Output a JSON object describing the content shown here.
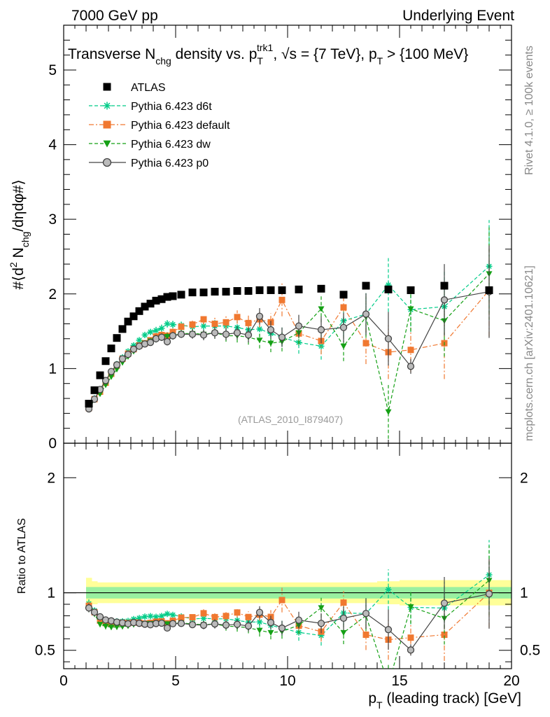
{
  "header": {
    "left": "7000 GeV pp",
    "right": "Underlying Event"
  },
  "side_labels": {
    "rivet": "Rivet 4.1.0, ≥ 100k events",
    "mcplots": "mcplots.cern.ch [arXiv:2401.10621]"
  },
  "chart_data": [
    {
      "type": "scatter",
      "panel": "main",
      "title": "Transverse N_chg density vs. p_T^trk1, √s = {7 TeV}, p_T > {100 MeV}",
      "ylabel": "#⟨d² N_chg/dηdφ#⟩",
      "xlim": [
        0,
        20
      ],
      "ylim": [
        0,
        5.6
      ],
      "xticks": [
        0,
        5,
        10,
        15,
        20
      ],
      "yticks": [
        0,
        1,
        2,
        3,
        4,
        5
      ],
      "analysis_label": "(ATLAS_2010_I879407)",
      "legend": [
        {
          "name": "ATLAS",
          "color": "#000000",
          "marker": "square",
          "style": "none"
        },
        {
          "name": "Pythia 6.423 d6t",
          "color": "#00cc88",
          "marker": "star",
          "style": "dashed"
        },
        {
          "name": "Pythia 6.423 default",
          "color": "#f07830",
          "marker": "square",
          "style": "dashdot"
        },
        {
          "name": "Pythia 6.423 dw",
          "color": "#15a015",
          "marker": "triangle-down",
          "style": "dashed"
        },
        {
          "name": "Pythia 6.423 p0",
          "color": "#444444",
          "marker": "circle",
          "style": "solid"
        }
      ],
      "series": [
        {
          "name": "ATLAS",
          "x": [
            1.125,
            1.375,
            1.625,
            1.875,
            2.125,
            2.375,
            2.625,
            2.875,
            3.125,
            3.375,
            3.625,
            3.875,
            4.125,
            4.375,
            4.625,
            4.875,
            5.25,
            5.75,
            6.25,
            6.75,
            7.25,
            7.75,
            8.25,
            8.75,
            9.25,
            9.75,
            10.5,
            11.5,
            12.5,
            13.5,
            14.5,
            15.5,
            17.0,
            19.0
          ],
          "y": [
            0.53,
            0.71,
            0.91,
            1.1,
            1.27,
            1.41,
            1.53,
            1.63,
            1.7,
            1.77,
            1.83,
            1.87,
            1.91,
            1.93,
            1.96,
            1.97,
            1.99,
            2.02,
            2.02,
            2.03,
            2.03,
            2.04,
            2.04,
            2.05,
            2.05,
            2.05,
            2.06,
            2.07,
            1.99,
            2.11,
            2.06,
            2.05,
            2.11,
            2.05
          ],
          "err": [
            0,
            0,
            0,
            0,
            0,
            0,
            0,
            0,
            0,
            0,
            0,
            0,
            0,
            0,
            0,
            0,
            0,
            0,
            0,
            0,
            0,
            0,
            0,
            0,
            0,
            0,
            0,
            0,
            0,
            0,
            0,
            0,
            0,
            0
          ]
        },
        {
          "name": "Pythia 6.423 d6t",
          "x": [
            1.125,
            1.375,
            1.625,
            1.875,
            2.125,
            2.375,
            2.625,
            2.875,
            3.125,
            3.375,
            3.625,
            3.875,
            4.125,
            4.375,
            4.625,
            4.875,
            5.25,
            5.75,
            6.25,
            6.75,
            7.25,
            7.75,
            8.25,
            8.75,
            9.25,
            9.75,
            10.5,
            11.5,
            12.5,
            13.5,
            14.5,
            15.5,
            17.0,
            19.0
          ],
          "y": [
            0.48,
            0.6,
            0.7,
            0.83,
            0.95,
            1.06,
            1.15,
            1.23,
            1.31,
            1.38,
            1.45,
            1.49,
            1.51,
            1.54,
            1.6,
            1.59,
            1.58,
            1.56,
            1.57,
            1.57,
            1.57,
            1.55,
            1.52,
            1.53,
            1.47,
            1.42,
            1.35,
            1.3,
            1.64,
            1.73,
            2.12,
            1.79,
            1.83,
            2.37
          ],
          "err": [
            0.02,
            0.02,
            0.02,
            0.03,
            0.03,
            0.03,
            0.03,
            0.03,
            0.03,
            0.04,
            0.04,
            0.04,
            0.05,
            0.05,
            0.05,
            0.05,
            0.05,
            0.06,
            0.07,
            0.08,
            0.08,
            0.09,
            0.1,
            0.11,
            0.12,
            0.13,
            0.15,
            0.18,
            0.2,
            0.28,
            0.36,
            0.3,
            0.48,
            0.62
          ]
        },
        {
          "name": "Pythia 6.423 default",
          "x": [
            1.125,
            1.375,
            1.625,
            1.875,
            2.125,
            2.375,
            2.625,
            2.875,
            3.125,
            3.375,
            3.625,
            3.875,
            4.125,
            4.375,
            4.625,
            4.875,
            5.25,
            5.75,
            6.25,
            6.75,
            7.25,
            7.75,
            8.25,
            8.75,
            9.25,
            9.75,
            10.5,
            11.5,
            12.5,
            13.5,
            14.5,
            15.5,
            17.0,
            19.0
          ],
          "y": [
            0.47,
            0.59,
            0.69,
            0.81,
            0.93,
            1.04,
            1.13,
            1.2,
            1.26,
            1.31,
            1.34,
            1.38,
            1.43,
            1.45,
            1.44,
            1.49,
            1.56,
            1.59,
            1.66,
            1.6,
            1.62,
            1.69,
            1.61,
            1.66,
            1.62,
            1.92,
            1.47,
            1.37,
            1.82,
            1.34,
            1.22,
            1.25,
            1.34,
            2.05
          ],
          "err": [
            0.02,
            0.02,
            0.02,
            0.03,
            0.03,
            0.03,
            0.03,
            0.03,
            0.03,
            0.04,
            0.04,
            0.04,
            0.05,
            0.05,
            0.05,
            0.05,
            0.05,
            0.06,
            0.07,
            0.08,
            0.08,
            0.09,
            0.1,
            0.11,
            0.12,
            0.22,
            0.15,
            0.18,
            0.2,
            0.28,
            0.36,
            0.3,
            0.48,
            0.62
          ]
        },
        {
          "name": "Pythia 6.423 dw",
          "x": [
            1.125,
            1.375,
            1.625,
            1.875,
            2.125,
            2.375,
            2.625,
            2.875,
            3.125,
            3.375,
            3.625,
            3.875,
            4.125,
            4.375,
            4.625,
            4.875,
            5.25,
            5.75,
            6.25,
            6.75,
            7.25,
            7.75,
            8.25,
            8.75,
            9.25,
            9.75,
            10.5,
            11.5,
            12.5,
            13.5,
            14.5,
            15.5,
            17.0,
            19.0
          ],
          "y": [
            0.46,
            0.58,
            0.66,
            0.78,
            0.89,
            0.99,
            1.08,
            1.16,
            1.23,
            1.29,
            1.34,
            1.37,
            1.4,
            1.42,
            1.43,
            1.44,
            1.47,
            1.47,
            1.46,
            1.48,
            1.44,
            1.44,
            1.42,
            1.38,
            1.34,
            1.36,
            1.48,
            1.8,
            1.3,
            1.69,
            0.42,
            1.8,
            1.64,
            2.27
          ],
          "err": [
            0.02,
            0.02,
            0.02,
            0.03,
            0.03,
            0.03,
            0.03,
            0.03,
            0.03,
            0.04,
            0.04,
            0.04,
            0.05,
            0.05,
            0.05,
            0.05,
            0.05,
            0.06,
            0.07,
            0.08,
            0.08,
            0.09,
            0.1,
            0.11,
            0.12,
            0.13,
            0.15,
            0.18,
            0.2,
            0.28,
            0.36,
            0.3,
            0.48,
            0.62
          ]
        },
        {
          "name": "Pythia 6.423 p0",
          "x": [
            1.125,
            1.375,
            1.625,
            1.875,
            2.125,
            2.375,
            2.625,
            2.875,
            3.125,
            3.375,
            3.625,
            3.875,
            4.125,
            4.375,
            4.625,
            4.875,
            5.25,
            5.75,
            6.25,
            6.75,
            7.25,
            7.75,
            8.25,
            8.75,
            9.25,
            9.75,
            10.5,
            11.5,
            12.5,
            13.5,
            14.5,
            15.5,
            17.0,
            19.0
          ],
          "y": [
            0.46,
            0.59,
            0.72,
            0.84,
            0.96,
            1.05,
            1.13,
            1.19,
            1.26,
            1.3,
            1.33,
            1.35,
            1.4,
            1.42,
            1.36,
            1.44,
            1.46,
            1.46,
            1.45,
            1.48,
            1.46,
            1.48,
            1.45,
            1.7,
            1.52,
            1.42,
            1.57,
            1.52,
            1.55,
            1.73,
            1.4,
            1.03,
            1.92,
            2.03
          ],
          "err": [
            0.02,
            0.02,
            0.02,
            0.03,
            0.03,
            0.03,
            0.03,
            0.03,
            0.03,
            0.04,
            0.04,
            0.04,
            0.05,
            0.05,
            0.05,
            0.05,
            0.05,
            0.06,
            0.07,
            0.08,
            0.08,
            0.09,
            0.1,
            0.11,
            0.12,
            0.13,
            0.15,
            0.18,
            0.2,
            0.28,
            0.36,
            0.1,
            0.48,
            0.62
          ]
        }
      ]
    },
    {
      "type": "scatter",
      "panel": "ratio",
      "xlabel": "p_T (leading track) [GeV]",
      "ylabel": "Ratio to ATLAS",
      "xlim": [
        0,
        20
      ],
      "ylim": [
        0.34,
        2.3
      ],
      "xticks": [
        0,
        5,
        10,
        15,
        20
      ],
      "yticks": [
        0.5,
        1,
        2
      ],
      "band_inner": 0.05,
      "band_outer": [
        0.13,
        0.1,
        0.09,
        0.09,
        0.09,
        0.09,
        0.09,
        0.09,
        0.09,
        0.09,
        0.09,
        0.09,
        0.09,
        0.09,
        0.09,
        0.09,
        0.09,
        0.09,
        0.09,
        0.09,
        0.09,
        0.09,
        0.09,
        0.09,
        0.09,
        0.09,
        0.09,
        0.09,
        0.09,
        0.09,
        0.1,
        0.11,
        0.11,
        0.11
      ]
    }
  ]
}
